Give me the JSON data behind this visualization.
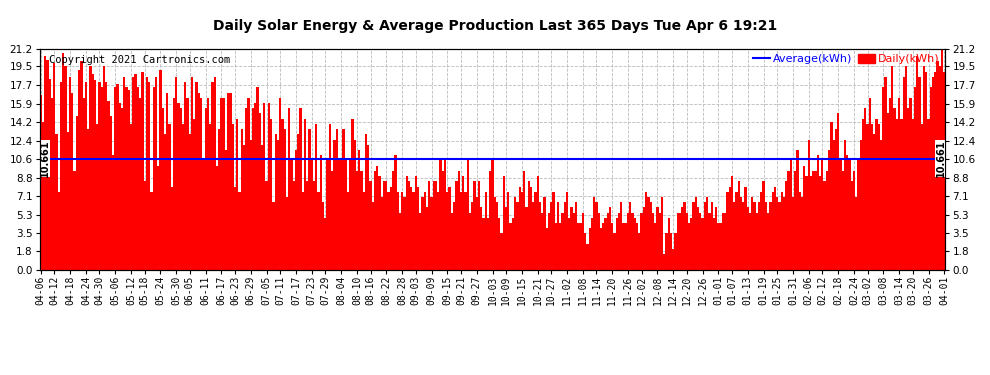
{
  "title": "Daily Solar Energy & Average Production Last 365 Days Tue Apr 6 19:21",
  "copyright": "Copyright 2021 Cartronics.com",
  "average_value": 10.661,
  "bar_color": "#ff0000",
  "average_color": "#0000ff",
  "background_color": "#ffffff",
  "plot_bg_color": "#ffffff",
  "grid_color": "#bbbbbb",
  "yticks": [
    0.0,
    1.8,
    3.5,
    5.3,
    7.1,
    8.8,
    10.6,
    12.4,
    14.2,
    15.9,
    17.7,
    19.5,
    21.2
  ],
  "ylim": [
    0.0,
    21.2
  ],
  "xtick_labels": [
    "04-06",
    "04-12",
    "04-18",
    "04-24",
    "04-30",
    "05-06",
    "05-12",
    "05-18",
    "05-24",
    "05-30",
    "06-05",
    "06-11",
    "06-17",
    "06-23",
    "06-29",
    "07-05",
    "07-11",
    "07-17",
    "07-23",
    "07-29",
    "08-04",
    "08-10",
    "08-16",
    "08-22",
    "08-28",
    "09-03",
    "09-09",
    "09-15",
    "09-21",
    "09-27",
    "10-03",
    "10-09",
    "10-15",
    "10-21",
    "10-27",
    "11-02",
    "11-08",
    "11-14",
    "11-20",
    "11-26",
    "12-02",
    "12-08",
    "12-14",
    "12-20",
    "12-26",
    "01-01",
    "01-07",
    "01-13",
    "01-19",
    "01-25",
    "01-31",
    "02-06",
    "02-12",
    "02-18",
    "02-24",
    "03-02",
    "03-08",
    "03-14",
    "03-20",
    "03-26",
    "04-01"
  ],
  "daily_values": [
    16.8,
    14.2,
    20.5,
    20.1,
    18.3,
    16.5,
    19.8,
    13.0,
    7.5,
    18.0,
    20.8,
    19.5,
    13.2,
    18.5,
    17.0,
    9.5,
    14.8,
    19.2,
    20.0,
    16.5,
    18.0,
    13.5,
    19.5,
    18.8,
    18.2,
    14.0,
    18.0,
    17.5,
    19.5,
    18.0,
    16.2,
    14.8,
    11.0,
    17.5,
    17.8,
    16.0,
    15.5,
    18.5,
    17.5,
    17.2,
    14.0,
    18.5,
    18.8,
    17.5,
    16.5,
    19.0,
    8.5,
    18.5,
    18.0,
    7.5,
    17.5,
    18.5,
    10.0,
    19.2,
    15.5,
    13.0,
    17.0,
    14.0,
    8.0,
    16.5,
    18.5,
    16.0,
    15.5,
    14.0,
    18.0,
    16.5,
    13.0,
    18.5,
    14.5,
    18.0,
    17.0,
    16.5,
    10.5,
    15.5,
    16.5,
    14.0,
    18.0,
    18.5,
    10.0,
    13.5,
    16.5,
    16.5,
    11.5,
    17.0,
    17.0,
    14.0,
    8.0,
    14.5,
    7.5,
    13.5,
    12.0,
    15.5,
    16.5,
    12.5,
    15.5,
    16.0,
    17.5,
    15.0,
    12.0,
    16.0,
    8.5,
    16.0,
    14.5,
    6.5,
    13.0,
    12.5,
    16.5,
    14.5,
    13.5,
    7.0,
    15.5,
    10.5,
    8.5,
    11.5,
    13.0,
    15.5,
    7.5,
    14.5,
    8.5,
    13.5,
    10.5,
    8.5,
    14.0,
    7.5,
    11.0,
    6.5,
    5.0,
    10.5,
    14.0,
    9.5,
    12.5,
    13.5,
    10.5,
    10.5,
    13.5,
    10.5,
    7.5,
    10.5,
    14.5,
    12.5,
    9.5,
    11.5,
    9.5,
    7.5,
    13.0,
    12.0,
    8.5,
    6.5,
    9.5,
    10.0,
    9.0,
    7.0,
    8.5,
    8.5,
    7.5,
    8.0,
    9.5,
    11.0,
    7.5,
    5.5,
    7.5,
    7.0,
    9.0,
    8.5,
    8.0,
    7.5,
    9.0,
    8.0,
    5.5,
    7.0,
    7.5,
    6.0,
    8.5,
    7.0,
    8.5,
    8.5,
    7.5,
    10.5,
    9.5,
    10.5,
    7.5,
    8.0,
    5.5,
    6.5,
    8.5,
    9.5,
    7.5,
    9.0,
    7.5,
    10.5,
    5.5,
    6.5,
    8.5,
    7.0,
    8.5,
    6.0,
    5.0,
    7.5,
    5.0,
    9.5,
    10.5,
    7.0,
    6.5,
    5.0,
    3.5,
    9.0,
    6.0,
    7.5,
    4.5,
    5.0,
    7.0,
    6.5,
    8.0,
    7.5,
    9.5,
    6.0,
    8.5,
    8.0,
    6.5,
    7.5,
    9.0,
    6.5,
    5.5,
    7.0,
    4.0,
    5.5,
    6.5,
    7.5,
    4.5,
    6.5,
    4.5,
    5.5,
    6.5,
    7.5,
    5.0,
    6.0,
    5.5,
    6.5,
    4.5,
    4.5,
    5.5,
    3.5,
    2.5,
    4.0,
    5.0,
    7.0,
    6.5,
    5.5,
    4.0,
    4.5,
    5.0,
    5.5,
    6.0,
    4.5,
    3.5,
    5.0,
    5.5,
    6.5,
    4.5,
    4.5,
    5.5,
    6.5,
    5.5,
    5.0,
    4.5,
    3.5,
    5.5,
    6.0,
    7.5,
    7.0,
    6.5,
    5.5,
    4.5,
    6.0,
    5.5,
    7.0,
    1.5,
    3.5,
    5.0,
    3.5,
    2.0,
    3.5,
    5.5,
    5.5,
    6.0,
    6.5,
    5.5,
    4.5,
    5.0,
    6.5,
    7.0,
    6.0,
    5.5,
    5.0,
    6.5,
    7.0,
    5.5,
    6.5,
    5.0,
    6.0,
    4.5,
    4.5,
    5.5,
    5.5,
    7.5,
    8.0,
    9.0,
    6.5,
    7.5,
    8.5,
    7.0,
    6.5,
    8.0,
    6.0,
    5.5,
    7.0,
    6.5,
    5.5,
    6.5,
    7.5,
    8.5,
    6.5,
    5.5,
    6.5,
    7.5,
    8.0,
    7.0,
    6.5,
    7.5,
    7.0,
    8.5,
    9.5,
    10.5,
    7.0,
    9.5,
    11.5,
    7.5,
    7.0,
    10.0,
    9.0,
    12.5,
    9.0,
    9.5,
    9.5,
    11.0,
    9.0,
    10.5,
    8.5,
    9.5,
    11.5,
    14.2,
    12.5,
    13.5,
    15.0,
    10.5,
    9.5,
    12.5,
    11.0,
    10.5,
    8.5,
    9.5,
    7.0,
    10.5,
    12.5,
    14.5,
    15.5,
    14.0,
    16.5,
    14.0,
    13.0,
    14.5,
    14.0,
    12.5,
    17.5,
    18.5,
    15.0,
    16.5,
    19.5,
    15.5,
    14.5,
    16.5,
    14.5,
    18.5,
    19.5,
    15.5,
    16.5,
    14.5,
    17.5,
    20.5,
    18.5,
    14.0,
    19.5,
    19.0,
    14.5,
    17.5,
    18.5,
    19.0,
    20.0,
    19.5,
    21.2,
    19.0
  ]
}
